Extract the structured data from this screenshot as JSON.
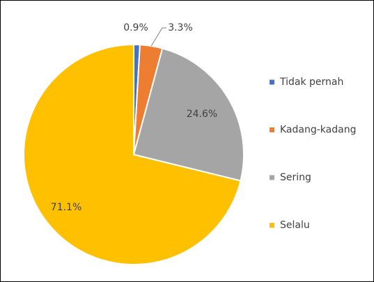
{
  "chart_data": {
    "type": "pie",
    "categories": [
      "Tidak pernah",
      "Kadang-kadang",
      "Sering",
      "Selalu"
    ],
    "values": [
      0.9,
      3.3,
      24.6,
      71.1
    ],
    "value_labels": [
      "0.9%",
      "3.3%",
      "24.6%",
      "71.1%"
    ],
    "colors": [
      "#4472c4",
      "#ed7d31",
      "#a5a5a5",
      "#ffc000"
    ],
    "legend": "right"
  }
}
